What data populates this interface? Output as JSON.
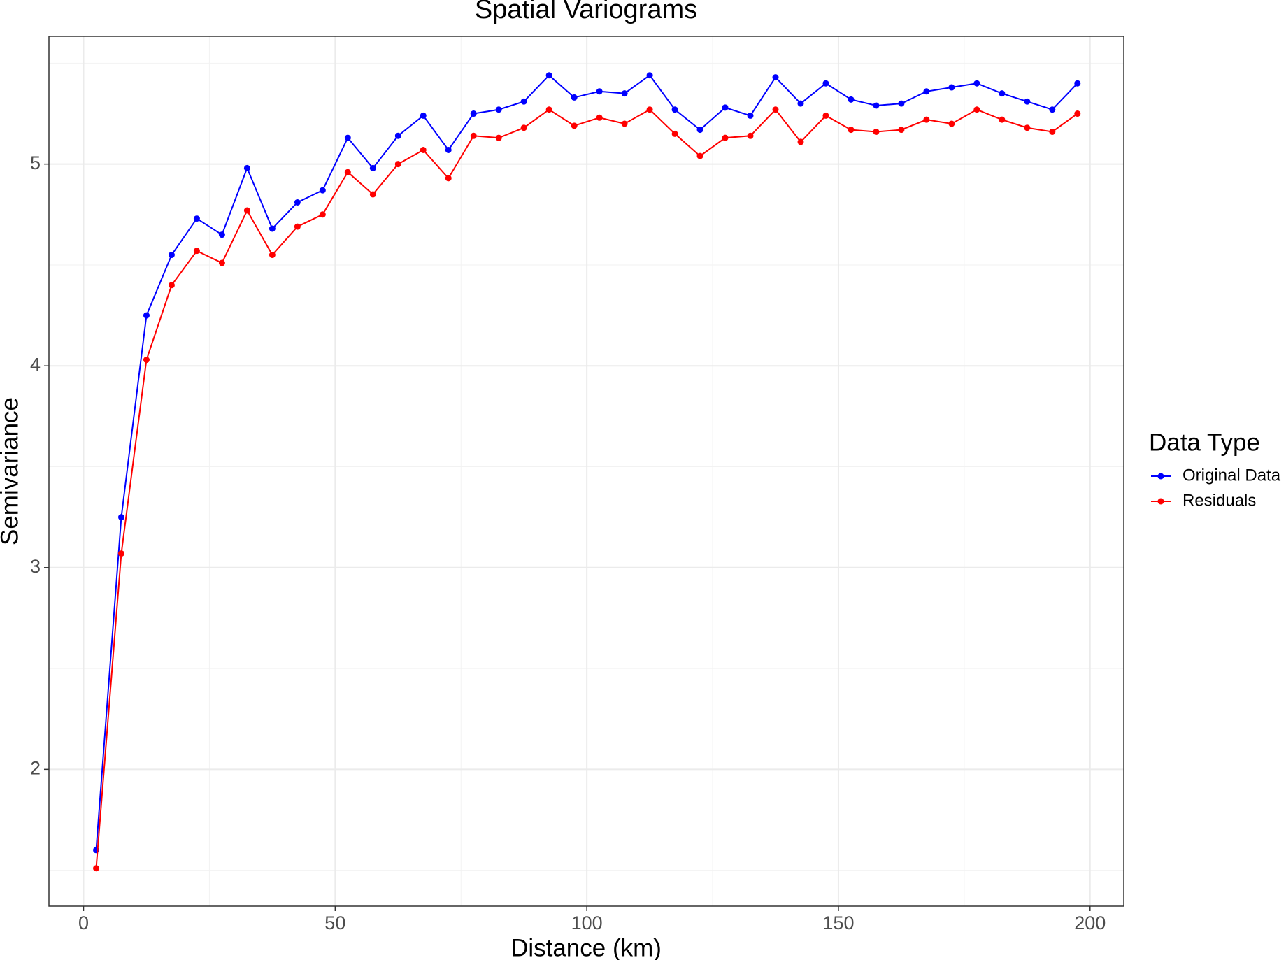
{
  "chart_data": {
    "type": "line",
    "title": "Spatial Variograms",
    "x_label": "Distance (km)",
    "y_label": "Semivariance",
    "legend_title": "Data Type",
    "legend_position": "right",
    "grid": true,
    "x": [
      2.5,
      7.5,
      12.5,
      17.5,
      22.5,
      27.5,
      32.5,
      37.5,
      42.5,
      47.5,
      52.5,
      57.5,
      62.5,
      67.5,
      72.5,
      77.5,
      82.5,
      87.5,
      92.5,
      97.5,
      102.5,
      107.5,
      112.5,
      117.5,
      122.5,
      127.5,
      132.5,
      137.5,
      142.5,
      147.5,
      152.5,
      157.5,
      162.5,
      167.5,
      172.5,
      177.5,
      182.5,
      187.5,
      192.5,
      197.5
    ],
    "series": [
      {
        "name": "Original Data",
        "color": "#0000ff",
        "values": [
          1.6,
          3.25,
          4.25,
          4.55,
          4.73,
          4.65,
          4.98,
          4.68,
          4.81,
          4.87,
          5.13,
          4.98,
          5.14,
          5.24,
          5.07,
          5.25,
          5.27,
          5.31,
          5.44,
          5.33,
          5.36,
          5.35,
          5.44,
          5.27,
          5.17,
          5.28,
          5.24,
          5.43,
          5.3,
          5.4,
          5.32,
          5.29,
          5.3,
          5.36,
          5.38,
          5.4,
          5.35,
          5.31,
          5.27,
          5.4
        ]
      },
      {
        "name": "Residuals",
        "color": "#ff0000",
        "values": [
          1.51,
          3.07,
          4.03,
          4.4,
          4.57,
          4.51,
          4.77,
          4.55,
          4.69,
          4.75,
          4.96,
          4.85,
          5.0,
          5.07,
          4.93,
          5.14,
          5.13,
          5.18,
          5.27,
          5.19,
          5.23,
          5.2,
          5.27,
          5.15,
          5.04,
          5.13,
          5.14,
          5.27,
          5.11,
          5.24,
          5.17,
          5.16,
          5.17,
          5.22,
          5.2,
          5.27,
          5.22,
          5.18,
          5.16,
          5.25
        ]
      }
    ],
    "xlim": [
      -6.88,
      206.7
    ],
    "xticks": [
      0,
      50,
      100,
      150,
      200
    ],
    "x_minor_ticks": [
      25,
      75,
      125,
      175
    ],
    "ylim": [
      1.322,
      5.633
    ],
    "yticks": [
      2,
      3,
      4,
      5
    ],
    "y_minor_ticks": [
      1.5,
      2.5,
      3.5,
      4.5,
      5.5
    ]
  }
}
